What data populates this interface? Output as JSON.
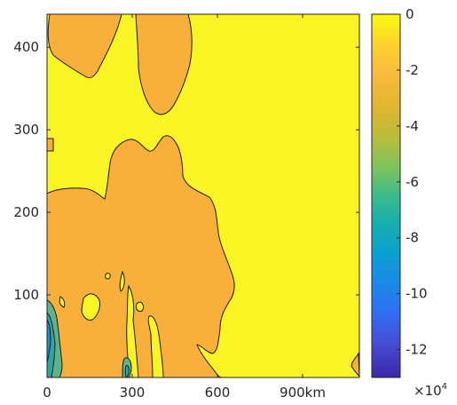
{
  "chart_data": {
    "type": "contour",
    "title": "",
    "xlabel": "",
    "ylabel": "",
    "x_ticks": [
      "0",
      "300",
      "600",
      "900km"
    ],
    "y_ticks": [
      "100",
      "200",
      "300",
      "400"
    ],
    "x_tick_values": [
      0,
      300,
      600,
      900
    ],
    "y_tick_values": [
      100,
      200,
      300,
      400
    ],
    "xlim": [
      0,
      1100
    ],
    "ylim": [
      0,
      440
    ],
    "colorbar": {
      "ticks": [
        "0",
        "-2",
        "-4",
        "-6",
        "-8",
        "-10",
        "-12"
      ],
      "tick_values": [
        0,
        -2,
        -4,
        -6,
        -8,
        -10,
        -12
      ],
      "range": [
        -13,
        0
      ],
      "multiplier": "×10",
      "exponent": "4",
      "colormap": [
        "#f9fb0e",
        "#fcbb3e",
        "#d1ba2c",
        "#81cc59",
        "#20b1a4",
        "#05a1d9",
        "#1281e8",
        "#3d5ffb",
        "#4836bd",
        "#3e26a8"
      ]
    },
    "levels": {
      "yellow": "#f9f423",
      "orange": "#f9b03a",
      "green": "#5fb38c",
      "teal": "#2ea6a0",
      "blue": "#1c8fd0"
    }
  }
}
